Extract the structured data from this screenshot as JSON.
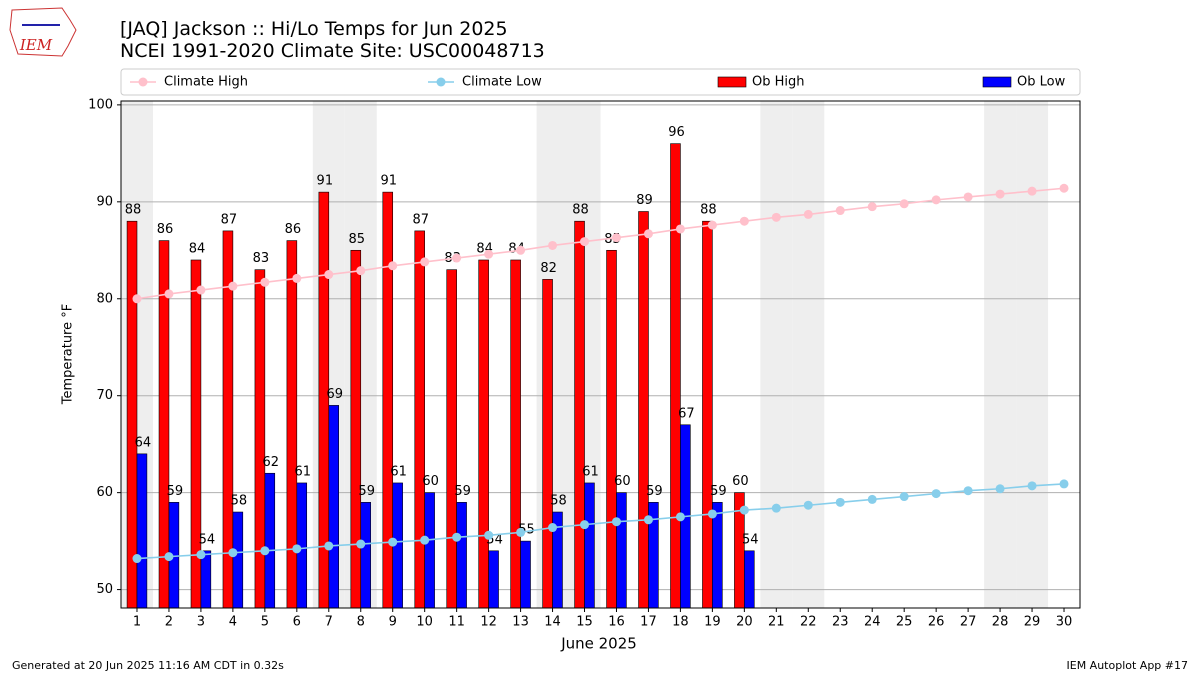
{
  "chart_data": {
    "type": "bar-line",
    "title": "[JAQ] Jackson :: Hi/Lo Temps for Jun 2025",
    "subtitle": "NCEI 1991-2020 Climate Site: USC00048713",
    "logo": "IEM",
    "xlabel": "June 2025",
    "ylabel": "Temperature °F",
    "x": [
      1,
      2,
      3,
      4,
      5,
      6,
      7,
      8,
      9,
      10,
      11,
      12,
      13,
      14,
      15,
      16,
      17,
      18,
      19,
      20,
      21,
      22,
      23,
      24,
      25,
      26,
      27,
      28,
      29,
      30
    ],
    "xlim": [
      0.5,
      30.5
    ],
    "ylim": [
      48.1,
      100.4
    ],
    "yticks": [
      50,
      60,
      70,
      80,
      90,
      100
    ],
    "grid": true,
    "shaded_days": [
      1,
      7,
      8,
      14,
      15,
      21,
      22,
      28,
      29
    ],
    "shade_color": "#eeeeee",
    "series": [
      {
        "name": "Climate High",
        "kind": "line",
        "color": "pink",
        "values": [
          80.0,
          80.5,
          80.9,
          81.3,
          81.7,
          82.1,
          82.5,
          82.9,
          83.4,
          83.8,
          84.2,
          84.6,
          85.0,
          85.5,
          85.9,
          86.3,
          86.7,
          87.2,
          87.6,
          88.0,
          88.4,
          88.7,
          89.1,
          89.5,
          89.8,
          90.2,
          90.5,
          90.8,
          91.1,
          91.4
        ]
      },
      {
        "name": "Climate Low",
        "kind": "line",
        "color": "skyblue",
        "values": [
          53.2,
          53.4,
          53.6,
          53.8,
          54.0,
          54.2,
          54.5,
          54.7,
          54.9,
          55.1,
          55.4,
          55.6,
          55.9,
          56.4,
          56.7,
          57.0,
          57.2,
          57.5,
          57.8,
          58.2,
          58.4,
          58.7,
          59.0,
          59.3,
          59.6,
          59.9,
          60.2,
          60.4,
          60.7,
          60.9
        ]
      },
      {
        "name": "Ob High",
        "kind": "bar",
        "color": "#ff0000",
        "values": [
          88,
          86,
          84,
          87,
          83,
          86,
          91,
          85,
          91,
          87,
          83,
          84,
          84,
          82,
          88,
          85,
          89,
          96,
          88,
          60,
          null,
          null,
          null,
          null,
          null,
          null,
          null,
          null,
          null,
          null
        ]
      },
      {
        "name": "Ob Low",
        "kind": "bar",
        "color": "#0000ff",
        "values": [
          64,
          59,
          54,
          58,
          62,
          61,
          69,
          59,
          61,
          60,
          59,
          54,
          55,
          58,
          61,
          60,
          59,
          67,
          59,
          54,
          null,
          null,
          null,
          null,
          null,
          null,
          null,
          null,
          null,
          null
        ]
      }
    ],
    "footer_left": "Generated at 20 Jun 2025 11:16 AM CDT in 0.32s",
    "footer_right": "IEM Autoplot App #17"
  }
}
